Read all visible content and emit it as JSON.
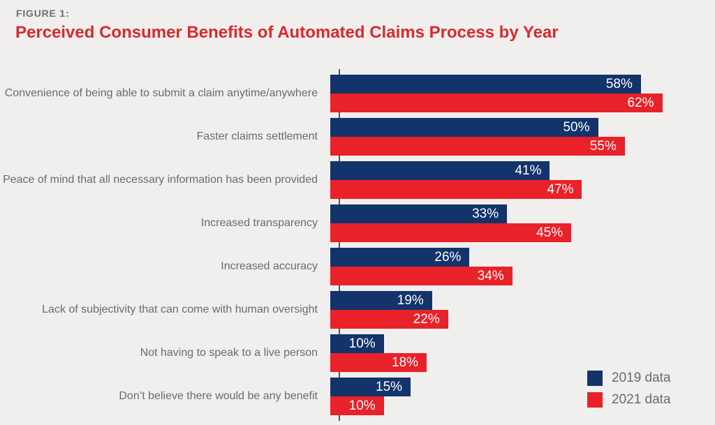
{
  "figure_label": "FIGURE 1:",
  "title": "Perceived Consumer Benefits of Automated Claims Process by Year",
  "colors": {
    "background": "#f0efed",
    "navy": "#13336b",
    "red": "#e92129",
    "title_red": "#d8292f",
    "figure_gray": "#6d6e71",
    "label_gray": "#6a6b6e",
    "axis": "#55565a",
    "value_text": "#ffffff"
  },
  "legend": {
    "items": [
      {
        "label": "2019 data",
        "color_key": "navy"
      },
      {
        "label": "2021 data",
        "color_key": "red"
      }
    ],
    "position": "bottom-right"
  },
  "chart_data": {
    "type": "bar",
    "orientation": "horizontal",
    "title": "Perceived Consumer Benefits of Automated Claims Process by Year",
    "categories": [
      "Convenience of being able to submit a claim anytime/anywhere",
      "Faster claims settlement",
      "Peace of mind that all necessary information has been provided",
      "Increased transparency",
      "Increased accuracy",
      "Lack of subjectivity that can come with human oversight",
      "Not having to speak to a live person",
      "Don’t believe there would be any benefit"
    ],
    "series": [
      {
        "name": "2019 data",
        "color_key": "navy",
        "values": [
          58,
          50,
          41,
          33,
          26,
          19,
          10,
          15
        ]
      },
      {
        "name": "2021 data",
        "color_key": "red",
        "values": [
          62,
          55,
          47,
          45,
          34,
          22,
          18,
          10
        ]
      }
    ],
    "value_suffix": "%",
    "value_labels_inside_bars": true,
    "xlim": [
      0,
      70
    ],
    "grid": false,
    "legend_position": "bottom-right"
  }
}
